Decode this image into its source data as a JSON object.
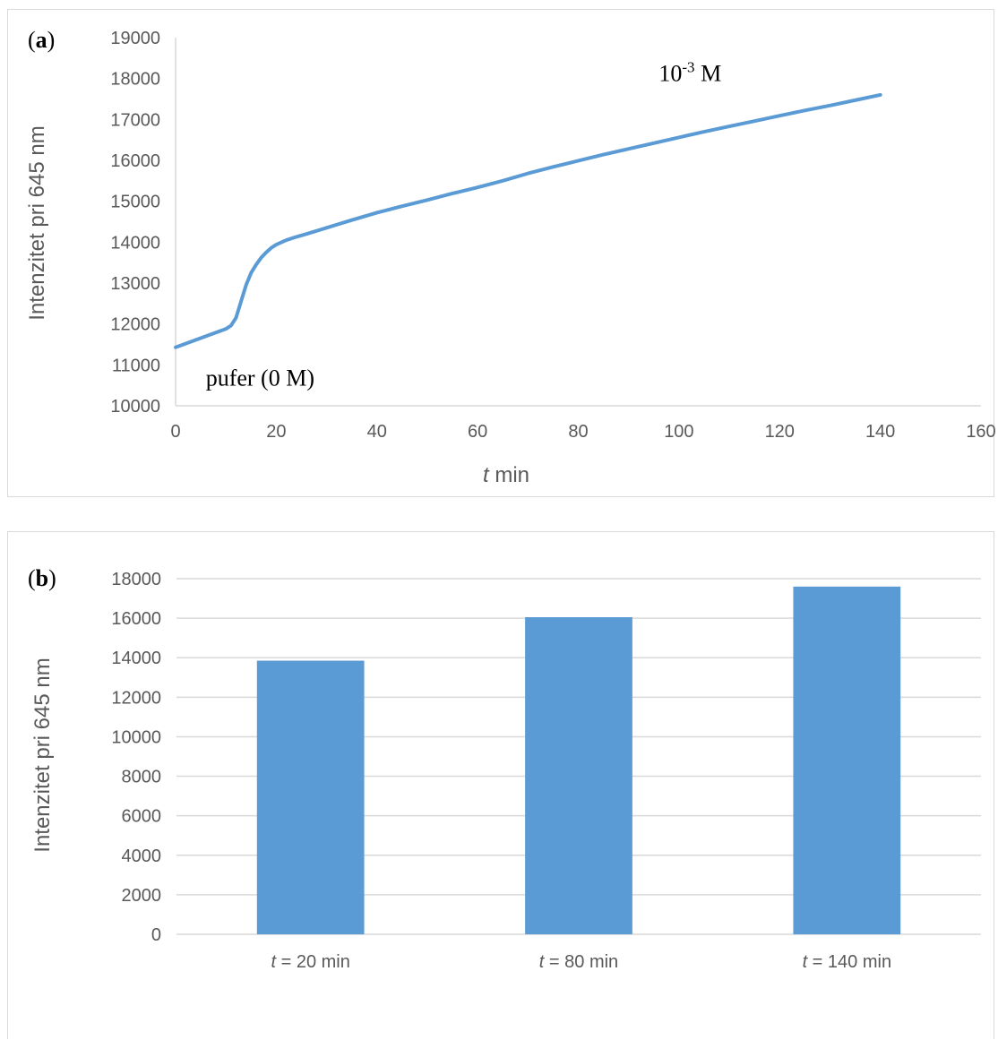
{
  "chart_data": [
    {
      "panel_label_open": "(",
      "panel_label_letter": "a",
      "panel_label_close": ")",
      "type": "line",
      "title": "",
      "xlabel_italic": "t",
      "xlabel_rest": " min",
      "ylabel": "Intenzitet pri 645 nm",
      "xlim": [
        0,
        160
      ],
      "ylim": [
        10000,
        19000
      ],
      "x_ticks": [
        0,
        20,
        40,
        60,
        80,
        100,
        120,
        140,
        160
      ],
      "y_ticks": [
        10000,
        11000,
        12000,
        13000,
        14000,
        15000,
        16000,
        17000,
        18000,
        19000
      ],
      "grid": false,
      "series_color": "#5b9bd5",
      "x": [
        0,
        2,
        4,
        6,
        8,
        10,
        11,
        12,
        13,
        14,
        15,
        16,
        17,
        18,
        19,
        20,
        22,
        24,
        26,
        30,
        35,
        40,
        45,
        50,
        55,
        60,
        65,
        70,
        75,
        80,
        85,
        90,
        95,
        100,
        105,
        110,
        115,
        120,
        125,
        130,
        135,
        140
      ],
      "y": [
        11430,
        11520,
        11610,
        11700,
        11790,
        11880,
        11960,
        12150,
        12550,
        12950,
        13250,
        13450,
        13620,
        13750,
        13860,
        13940,
        14050,
        14130,
        14200,
        14350,
        14540,
        14720,
        14880,
        15030,
        15190,
        15340,
        15500,
        15680,
        15840,
        15990,
        16140,
        16280,
        16420,
        16560,
        16700,
        16830,
        16960,
        17090,
        17220,
        17340,
        17470,
        17600
      ],
      "annotations": [
        {
          "base": "10",
          "sup": "-3",
          "rest": " M",
          "x": 96,
          "y": 18250
        },
        {
          "text": "pufer (0 M)",
          "x": 6,
          "y": 10800
        }
      ]
    },
    {
      "panel_label_open": "(",
      "panel_label_letter": "b",
      "panel_label_close": ")",
      "type": "bar",
      "title": "",
      "ylabel": "Intenzitet pri 645 nm",
      "ylim": [
        0,
        18000
      ],
      "y_ticks": [
        0,
        2000,
        4000,
        6000,
        8000,
        10000,
        12000,
        14000,
        16000,
        18000
      ],
      "grid": true,
      "bar_color": "#5b9bd5",
      "categories": [
        {
          "italic": "t",
          "rest": " = 20 min"
        },
        {
          "italic": "t",
          "rest": " = 80 min"
        },
        {
          "italic": "t",
          "rest": " = 140 min"
        }
      ],
      "values": [
        13850,
        16050,
        17600
      ]
    }
  ]
}
